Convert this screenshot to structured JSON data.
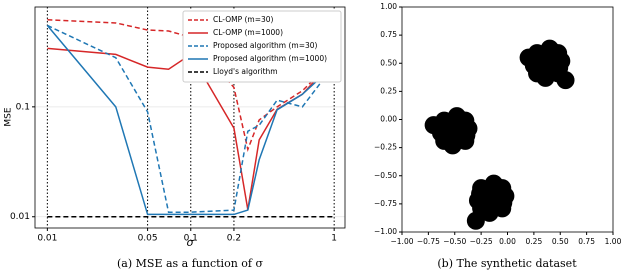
{
  "chart_data": [
    {
      "type": "line",
      "caption": "(a) MSE as a function of σ",
      "xlabel": "σ",
      "ylabel": "MSE",
      "xscale": "log",
      "yscale": "log",
      "x": [
        0.01,
        0.03,
        0.05,
        0.07,
        0.1,
        0.2,
        0.25,
        0.3,
        0.4,
        0.6,
        1
      ],
      "xlim": [
        0.0082,
        1.19
      ],
      "ylim": [
        0.0079,
        0.81
      ],
      "xticks": [
        0.01,
        0.05,
        0.1,
        0.2,
        1
      ],
      "yticks": [
        0.01,
        0.1
      ],
      "xgrid": true,
      "ygrid": true,
      "legend": "upper right",
      "series": [
        {
          "name": "CL-OMP (m=30)",
          "color": "#d62728",
          "dashed": true,
          "values": [
            0.62,
            0.58,
            0.5,
            0.49,
            0.43,
            0.15,
            0.041,
            0.076,
            0.1,
            0.14,
            0.27
          ]
        },
        {
          "name": "CL-OMP (m=1000)",
          "color": "#d62728",
          "dashed": false,
          "values": [
            0.34,
            0.3,
            0.23,
            0.22,
            0.3,
            0.064,
            0.0116,
            0.05,
            0.095,
            0.13,
            0.27
          ]
        },
        {
          "name": "Proposed algorithm (m=30)",
          "color": "#1f77b4",
          "dashed": true,
          "values": [
            0.55,
            0.28,
            0.09,
            0.011,
            0.011,
            0.0115,
            0.06,
            0.068,
            0.115,
            0.1,
            0.24
          ]
        },
        {
          "name": "Proposed algorithm (m=1000)",
          "color": "#1f77b4",
          "dashed": false,
          "values": [
            0.55,
            0.1,
            0.0105,
            0.0105,
            0.0105,
            0.0105,
            0.0115,
            0.033,
            0.094,
            0.13,
            0.24
          ]
        },
        {
          "name": "Lloyd's algorithm",
          "color": "#000000",
          "dashed": true,
          "values": [
            0.01,
            0.01,
            0.01,
            0.01,
            0.01,
            0.01,
            0.01,
            0.01,
            0.01,
            0.01,
            0.01
          ]
        }
      ]
    },
    {
      "type": "scatter",
      "caption": "(b) The synthetic dataset",
      "color": "#000000",
      "xlim": [
        -1,
        1
      ],
      "ylim": [
        -1,
        1
      ],
      "xticks": [
        {
          "value": -1,
          "label": "−1.00"
        },
        {
          "value": -0.75,
          "label": "−0.75"
        },
        {
          "value": -0.5,
          "label": "−0.50"
        },
        {
          "value": -0.25,
          "label": "−0.25"
        },
        {
          "value": 0,
          "label": "0.00"
        },
        {
          "value": 0.25,
          "label": "0.25"
        },
        {
          "value": 0.5,
          "label": "0.50"
        },
        {
          "value": 0.75,
          "label": "0.75"
        },
        {
          "value": 1,
          "label": "1.00"
        }
      ],
      "yticks": [
        {
          "value": -1,
          "label": "−1.00"
        },
        {
          "value": -0.75,
          "label": "−0.75"
        },
        {
          "value": -0.5,
          "label": "−0.50"
        },
        {
          "value": -0.25,
          "label": "−0.25"
        },
        {
          "value": 0,
          "label": "0.00"
        },
        {
          "value": 0.25,
          "label": "0.25"
        },
        {
          "value": 0.5,
          "label": "0.50"
        },
        {
          "value": 0.75,
          "label": "0.75"
        },
        {
          "value": 1,
          "label": "1.00"
        }
      ],
      "x": [
        0.38,
        0.46,
        0.3,
        0.38,
        0.38,
        0.44,
        0.32,
        0.44,
        0.32,
        0.51,
        0.25,
        0.4,
        0.36,
        0.48,
        0.28,
        0.48,
        0.28,
        0.42,
        0.27,
        0.49,
        -0.5,
        -0.42,
        -0.58,
        -0.5,
        -0.5,
        -0.44,
        -0.56,
        -0.44,
        -0.56,
        -0.37,
        -0.63,
        -0.48,
        -0.52,
        -0.4,
        -0.6,
        -0.4,
        -0.6,
        -0.46,
        -0.61,
        -0.39,
        -0.15,
        -0.07,
        -0.23,
        -0.15,
        -0.15,
        -0.09,
        -0.21,
        -0.09,
        -0.21,
        -0.02,
        -0.28,
        -0.13,
        -0.17,
        -0.05,
        -0.25,
        -0.05,
        -0.25,
        -0.11,
        -0.26,
        -0.04,
        0.2,
        -0.7,
        -0.3,
        0.55
      ],
      "values": [
        0.5,
        0.5,
        0.5,
        0.58,
        0.42,
        0.56,
        0.56,
        0.44,
        0.44,
        0.52,
        0.48,
        0.63,
        0.37,
        0.59,
        0.59,
        0.41,
        0.41,
        0.61,
        0.54,
        0.46,
        -0.1,
        -0.1,
        -0.1,
        -0.02,
        -0.18,
        -0.04,
        -0.04,
        -0.16,
        -0.16,
        -0.08,
        -0.12,
        0.03,
        -0.23,
        -0.01,
        -0.01,
        -0.19,
        -0.19,
        0.01,
        -0.06,
        -0.14,
        -0.7,
        -0.7,
        -0.7,
        -0.62,
        -0.78,
        -0.64,
        -0.64,
        -0.76,
        -0.76,
        -0.68,
        -0.72,
        -0.57,
        -0.83,
        -0.61,
        -0.61,
        -0.79,
        -0.79,
        -0.59,
        -0.66,
        -0.74,
        0.55,
        -0.05,
        -0.9,
        0.35
      ]
    }
  ]
}
